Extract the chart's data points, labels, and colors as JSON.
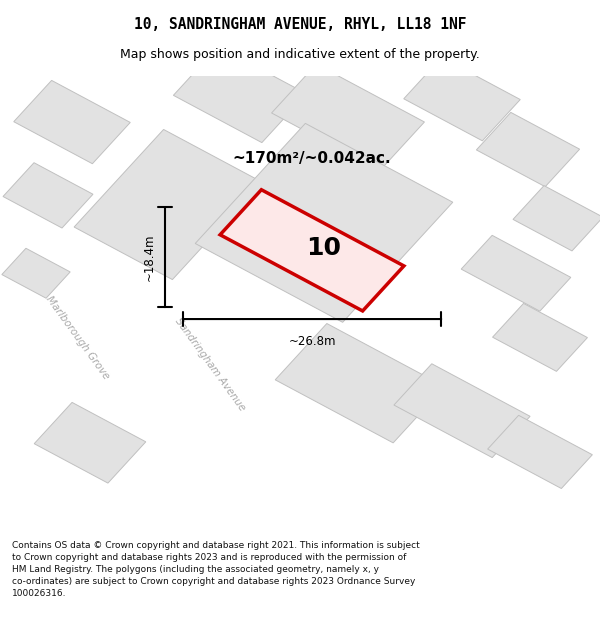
{
  "title": "10, SANDRINGHAM AVENUE, RHYL, LL18 1NF",
  "subtitle": "Map shows position and indicative extent of the property.",
  "footer": "Contains OS data © Crown copyright and database right 2021. This information is subject\nto Crown copyright and database rights 2023 and is reproduced with the permission of\nHM Land Registry. The polygons (including the associated geometry, namely x, y\nco-ordinates) are subject to Crown copyright and database rights 2023 Ordnance Survey\n100026316.",
  "area_label": "~170m²/~0.042ac.",
  "width_label": "~26.8m",
  "height_label": "~18.4m",
  "property_number": "10",
  "street_label1": "Sandringham Avenue",
  "street_label2": "Marlborough Grove",
  "title_fontsize": 10.5,
  "subtitle_fontsize": 9,
  "footer_fontsize": 6.5,
  "map_rotation": -35,
  "building_fill": "#e2e2e2",
  "building_edge": "#c0c0c0",
  "map_bg": "#eeeeee",
  "road_color": "#ffffff",
  "prop_fill": "#fde8e8",
  "prop_edge": "#cc0000"
}
